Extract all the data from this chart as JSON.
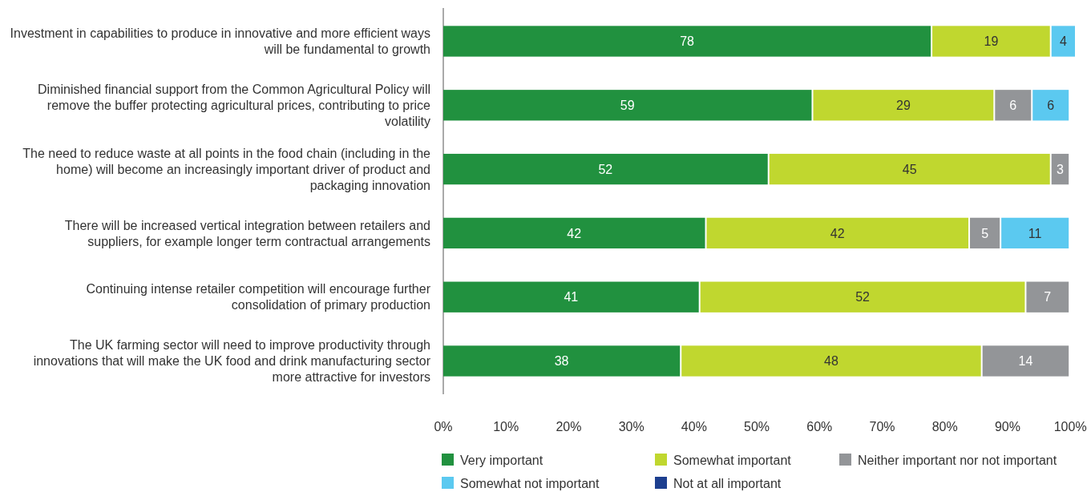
{
  "chart_data": {
    "type": "bar",
    "orientation": "horizontal",
    "stacked": true,
    "categories": [
      "Investment in capabilities to produce in innovative and more efficient ways will be fundamental to growth",
      "Diminished financial support from the Common Agricultural Policy will remove the buffer protecting agricultural prices, contributing to price volatility",
      "The need to reduce waste at all points in the food chain (including in the home) will become an increasingly important driver of product and packaging innovation",
      "There will be increased vertical integration between retailers and suppliers, for example longer term contractual arrangements",
      "Continuing intense retailer competition will encourage further consolidation of primary production",
      "The UK farming sector will need to improve productivity through innovations that will make the UK food and drink manufacturing sector more attractive for investors"
    ],
    "series": [
      {
        "name": "Very important",
        "color": "#21913f",
        "values": [
          78,
          59,
          52,
          42,
          41,
          38
        ]
      },
      {
        "name": "Somewhat important",
        "color": "#c0d72f",
        "values": [
          19,
          29,
          45,
          42,
          52,
          48
        ]
      },
      {
        "name": "Neither important nor not important",
        "color": "#939598",
        "values": [
          null,
          6,
          3,
          5,
          7,
          14
        ]
      },
      {
        "name": "Somewhat not important",
        "color": "#5bc9f0",
        "values": [
          4,
          6,
          null,
          11,
          null,
          null
        ]
      },
      {
        "name": "Not at all important",
        "color": "#1d3f8f",
        "values": [
          null,
          null,
          null,
          null,
          null,
          null
        ]
      }
    ],
    "xlim": [
      0,
      101
    ],
    "xticks": [
      {
        "value": 0,
        "label": "0%"
      },
      {
        "value": 10,
        "label": "10%"
      },
      {
        "value": 20,
        "label": "20%"
      },
      {
        "value": 30,
        "label": "30%"
      },
      {
        "value": 40,
        "label": "40%"
      },
      {
        "value": 50,
        "label": "50%"
      },
      {
        "value": 60,
        "label": "60%"
      },
      {
        "value": 70,
        "label": "70%"
      },
      {
        "value": 80,
        "label": "80%"
      },
      {
        "value": 90,
        "label": "90%"
      },
      {
        "value": 100,
        "label": "100%"
      }
    ],
    "data_labels": true,
    "legend": "bottom"
  }
}
